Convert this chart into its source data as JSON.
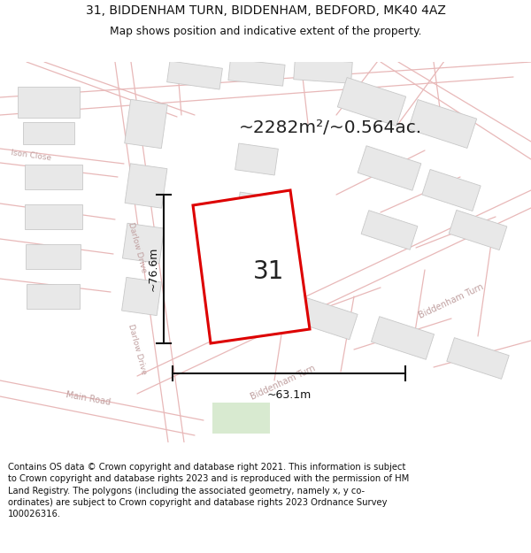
{
  "title_line1": "31, BIDDENHAM TURN, BIDDENHAM, BEDFORD, MK40 4AZ",
  "title_line2": "Map shows position and indicative extent of the property.",
  "area_text": "~2282m²/~0.564ac.",
  "number_text": "31",
  "dim_width": "~63.1m",
  "dim_height": "~76.6m",
  "footer_text": "Contains OS data © Crown copyright and database right 2021. This information is subject to Crown copyright and database rights 2023 and is reproduced with the permission of HM Land Registry. The polygons (including the associated geometry, namely x, y co-ordinates) are subject to Crown copyright and database rights 2023 Ordnance Survey 100026316.",
  "map_bg": "#ffffff",
  "road_line_color": "#e8b8b8",
  "building_face_color": "#e8e8e8",
  "building_edge_color": "#c8c8c8",
  "plot_outline_color": "#dd0000",
  "footer_bg": "#ffffff",
  "green_area_color": "#d8ead0",
  "title_color": "#111111",
  "dim_color": "#111111",
  "road_label_color": "#c0a0a0",
  "number_color": "#222222",
  "area_color": "#222222"
}
